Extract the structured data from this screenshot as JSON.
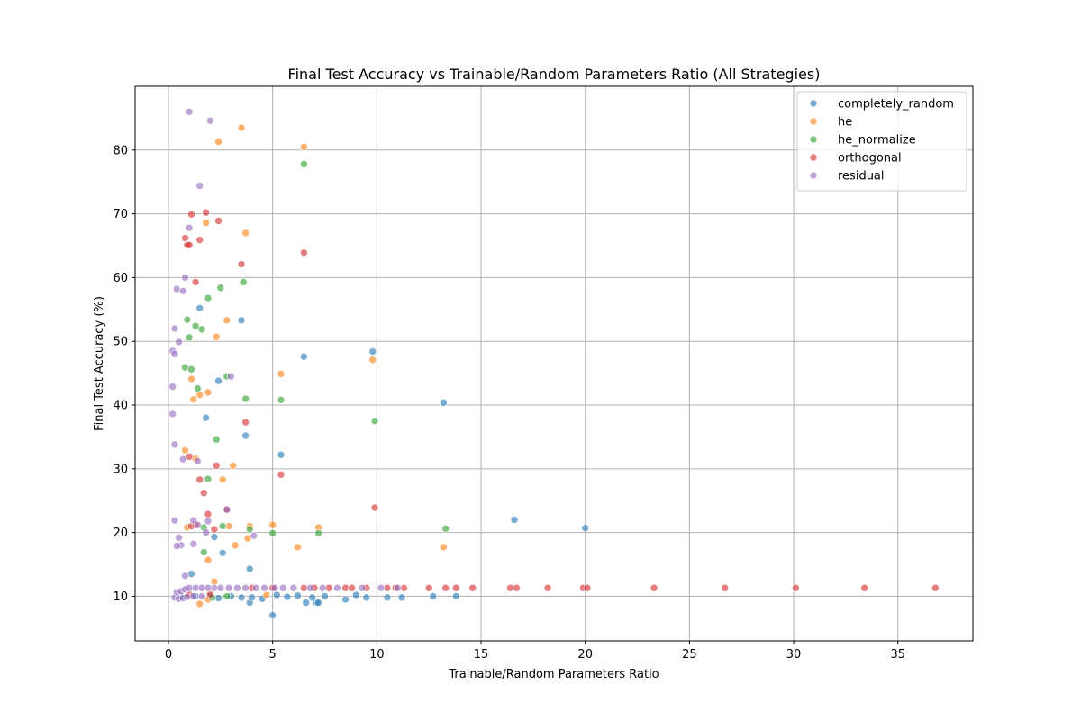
{
  "chart_data": {
    "type": "scatter",
    "title": "Final Test Accuracy vs Trainable/Random Parameters Ratio (All Strategies)",
    "xlabel": "Trainable/Random Parameters Ratio",
    "ylabel": "Final Test Accuracy (%)",
    "xlim": [
      -1.6,
      38.6
    ],
    "ylim": [
      3.0,
      90.0
    ],
    "xticks": [
      0,
      5,
      10,
      15,
      20,
      25,
      30,
      35
    ],
    "yticks": [
      10,
      20,
      30,
      40,
      50,
      60,
      70,
      80
    ],
    "grid": true,
    "legend_position": "top-right",
    "series": [
      {
        "name": "completely_random",
        "color": "#1f77b4",
        "points": [
          [
            1.5,
            55.2
          ],
          [
            3.5,
            53.3
          ],
          [
            9.8,
            48.4
          ],
          [
            6.5,
            47.6
          ],
          [
            2.4,
            43.8
          ],
          [
            13.2,
            40.4
          ],
          [
            1.8,
            38.0
          ],
          [
            3.7,
            35.2
          ],
          [
            5.4,
            32.2
          ],
          [
            16.6,
            22.0
          ],
          [
            20.0,
            20.7
          ],
          [
            2.2,
            19.3
          ],
          [
            2.6,
            16.8
          ],
          [
            3.9,
            14.3
          ],
          [
            1.1,
            13.5
          ],
          [
            5.0,
            7.0
          ],
          [
            3.9,
            9.0
          ],
          [
            6.6,
            9.0
          ],
          [
            7.1,
            9.0
          ],
          [
            7.2,
            9.0
          ],
          [
            0.6,
            10.0
          ],
          [
            1.3,
            10.0
          ],
          [
            2.0,
            10.0
          ],
          [
            2.4,
            9.7
          ],
          [
            3.0,
            10.0
          ],
          [
            3.5,
            9.8
          ],
          [
            4.0,
            9.8
          ],
          [
            4.5,
            9.6
          ],
          [
            5.2,
            10.2
          ],
          [
            5.7,
            9.9
          ],
          [
            6.2,
            10.1
          ],
          [
            6.9,
            9.8
          ],
          [
            7.5,
            10.0
          ],
          [
            8.5,
            9.5
          ],
          [
            9.0,
            10.2
          ],
          [
            9.5,
            9.8
          ],
          [
            10.5,
            9.8
          ],
          [
            11.2,
            9.8
          ],
          [
            12.7,
            10.0
          ],
          [
            13.8,
            10.0
          ]
        ]
      },
      {
        "name": "he",
        "color": "#ff7f0e",
        "points": [
          [
            3.5,
            83.5
          ],
          [
            2.4,
            81.3
          ],
          [
            6.5,
            80.5
          ],
          [
            1.8,
            68.6
          ],
          [
            3.7,
            67.0
          ],
          [
            2.8,
            53.3
          ],
          [
            2.3,
            50.7
          ],
          [
            9.8,
            47.1
          ],
          [
            5.4,
            44.9
          ],
          [
            1.1,
            44.1
          ],
          [
            1.9,
            42.0
          ],
          [
            1.5,
            41.6
          ],
          [
            1.2,
            40.9
          ],
          [
            0.8,
            32.9
          ],
          [
            1.3,
            31.6
          ],
          [
            3.1,
            30.5
          ],
          [
            2.6,
            28.3
          ],
          [
            2.9,
            21.0
          ],
          [
            3.9,
            21.0
          ],
          [
            5.0,
            21.2
          ],
          [
            7.2,
            20.8
          ],
          [
            0.9,
            20.8
          ],
          [
            3.8,
            19.1
          ],
          [
            3.2,
            18.0
          ],
          [
            6.2,
            17.7
          ],
          [
            13.2,
            17.7
          ],
          [
            1.9,
            15.7
          ],
          [
            2.2,
            12.3
          ],
          [
            1.5,
            8.8
          ],
          [
            1.9,
            9.5
          ],
          [
            4.7,
            10.2
          ]
        ]
      },
      {
        "name": "he_normalize",
        "color": "#2ca02c",
        "points": [
          [
            6.5,
            77.8
          ],
          [
            3.6,
            59.3
          ],
          [
            2.5,
            58.4
          ],
          [
            1.9,
            56.8
          ],
          [
            0.9,
            53.4
          ],
          [
            1.3,
            52.4
          ],
          [
            1.6,
            51.9
          ],
          [
            1.0,
            50.6
          ],
          [
            2.8,
            44.5
          ],
          [
            0.8,
            45.9
          ],
          [
            1.1,
            45.6
          ],
          [
            1.4,
            42.6
          ],
          [
            3.7,
            41.0
          ],
          [
            5.4,
            40.8
          ],
          [
            9.9,
            37.5
          ],
          [
            2.3,
            34.6
          ],
          [
            1.9,
            28.4
          ],
          [
            2.6,
            21.0
          ],
          [
            3.9,
            20.5
          ],
          [
            13.3,
            20.6
          ],
          [
            1.7,
            20.8
          ],
          [
            5.0,
            19.9
          ],
          [
            7.2,
            19.9
          ],
          [
            1.7,
            16.9
          ],
          [
            2.8,
            10.0
          ],
          [
            2.1,
            9.8
          ]
        ]
      },
      {
        "name": "orthogonal",
        "color": "#d62728",
        "points": [
          [
            1.8,
            70.2
          ],
          [
            1.1,
            69.9
          ],
          [
            2.4,
            68.9
          ],
          [
            0.8,
            66.2
          ],
          [
            1.5,
            65.9
          ],
          [
            0.9,
            65.1
          ],
          [
            1.0,
            65.1
          ],
          [
            6.5,
            63.9
          ],
          [
            3.5,
            62.1
          ],
          [
            1.3,
            59.3
          ],
          [
            3.7,
            37.3
          ],
          [
            1.0,
            31.9
          ],
          [
            2.3,
            30.5
          ],
          [
            5.4,
            29.1
          ],
          [
            1.5,
            28.3
          ],
          [
            1.7,
            26.2
          ],
          [
            9.9,
            23.9
          ],
          [
            2.8,
            23.6
          ],
          [
            1.9,
            22.9
          ],
          [
            1.1,
            21.0
          ],
          [
            1.3,
            21.2
          ],
          [
            2.2,
            20.5
          ],
          [
            1.0,
            10.3
          ],
          [
            2.0,
            10.3
          ],
          [
            4.0,
            11.3
          ],
          [
            5.0,
            11.3
          ],
          [
            6.5,
            11.3
          ],
          [
            7.0,
            11.3
          ],
          [
            7.7,
            11.3
          ],
          [
            8.5,
            11.3
          ],
          [
            8.8,
            11.3
          ],
          [
            9.5,
            11.3
          ],
          [
            10.5,
            11.3
          ],
          [
            10.9,
            11.3
          ],
          [
            11.3,
            11.3
          ],
          [
            12.5,
            11.3
          ],
          [
            13.3,
            11.3
          ],
          [
            13.8,
            11.3
          ],
          [
            14.6,
            11.3
          ],
          [
            16.4,
            11.3
          ],
          [
            16.7,
            11.3
          ],
          [
            18.2,
            11.3
          ],
          [
            19.9,
            11.3
          ],
          [
            20.1,
            11.3
          ],
          [
            23.3,
            11.3
          ],
          [
            26.7,
            11.3
          ],
          [
            30.1,
            11.3
          ],
          [
            33.4,
            11.3
          ],
          [
            36.8,
            11.3
          ]
        ]
      },
      {
        "name": "residual",
        "color": "#9467bd",
        "points": [
          [
            1.0,
            86.0
          ],
          [
            2.0,
            84.6
          ],
          [
            1.5,
            74.4
          ],
          [
            1.0,
            67.8
          ],
          [
            0.8,
            60.0
          ],
          [
            0.4,
            58.2
          ],
          [
            0.7,
            57.9
          ],
          [
            0.3,
            52.0
          ],
          [
            0.5,
            49.9
          ],
          [
            0.2,
            48.5
          ],
          [
            0.3,
            48.0
          ],
          [
            3.0,
            44.5
          ],
          [
            0.2,
            42.9
          ],
          [
            0.2,
            38.6
          ],
          [
            0.3,
            33.8
          ],
          [
            0.7,
            31.5
          ],
          [
            1.4,
            31.2
          ],
          [
            2.8,
            23.6
          ],
          [
            0.3,
            21.9
          ],
          [
            1.2,
            21.9
          ],
          [
            1.9,
            21.8
          ],
          [
            1.4,
            21.2
          ],
          [
            1.8,
            20.0
          ],
          [
            4.1,
            19.5
          ],
          [
            0.5,
            19.2
          ],
          [
            1.2,
            18.2
          ],
          [
            0.6,
            18.0
          ],
          [
            0.4,
            17.9
          ],
          [
            0.8,
            13.2
          ],
          [
            0.3,
            9.8
          ],
          [
            0.5,
            9.6
          ],
          [
            0.7,
            9.7
          ],
          [
            0.9,
            9.9
          ],
          [
            1.2,
            10.0
          ],
          [
            1.6,
            10.0
          ],
          [
            0.4,
            10.6
          ],
          [
            0.6,
            10.8
          ],
          [
            0.8,
            11.1
          ],
          [
            1.0,
            11.3
          ],
          [
            1.3,
            11.3
          ],
          [
            1.6,
            11.3
          ],
          [
            1.9,
            11.3
          ],
          [
            2.2,
            11.3
          ],
          [
            2.5,
            11.3
          ],
          [
            2.9,
            11.3
          ],
          [
            3.3,
            11.3
          ],
          [
            3.7,
            11.3
          ],
          [
            4.2,
            11.3
          ],
          [
            4.6,
            11.3
          ],
          [
            5.1,
            11.3
          ],
          [
            5.5,
            11.3
          ],
          [
            6.0,
            11.3
          ],
          [
            6.8,
            11.3
          ],
          [
            7.4,
            11.3
          ],
          [
            8.1,
            11.3
          ],
          [
            9.3,
            11.3
          ],
          [
            10.2,
            11.3
          ],
          [
            11.0,
            11.3
          ]
        ]
      }
    ]
  }
}
